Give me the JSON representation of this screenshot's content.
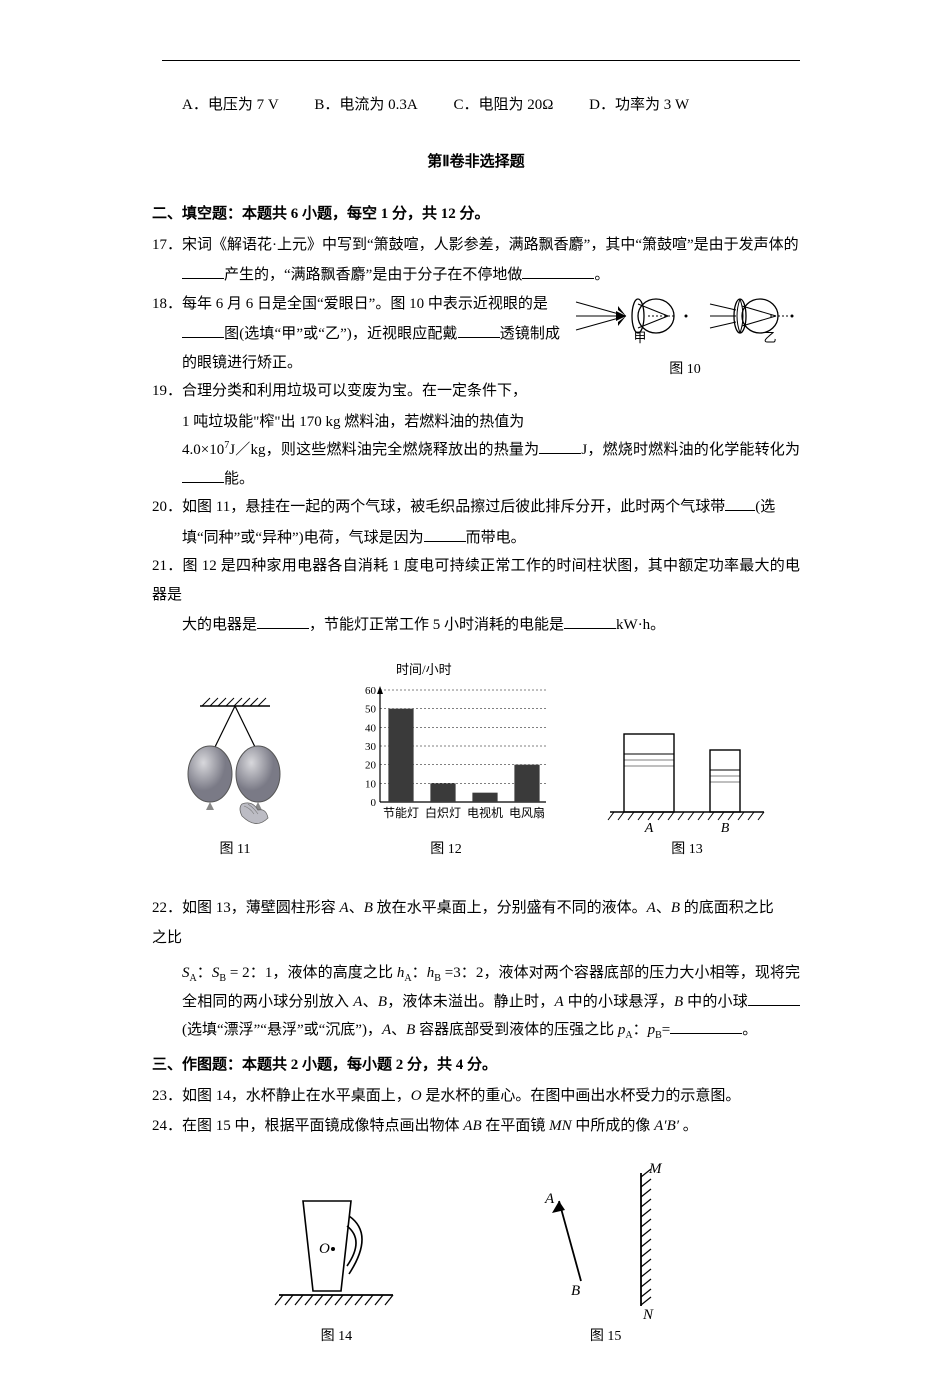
{
  "options_row": {
    "A": "A．电压为 7 V",
    "B": "B．电流为 0.3A",
    "C": "C．电阻为 20Ω",
    "D": "D．功率为 3 W"
  },
  "section2_title": "第Ⅱ卷非选择题",
  "fill_header": "二、填空题：本题共 6 小题，每空 1 分，共 12 分。",
  "q17": {
    "num": "17．",
    "text_a": "宋词《解语花·上元》中写到“箫鼓喧，人影参差，满路飘香麝”，其中“箫鼓喧”是由于发声体的",
    "text_b": "产生的，“满路飘香麝”是由于分子在不停地做",
    "text_c": "。"
  },
  "q18": {
    "num": "18．",
    "text_a": "每年 6 月 6 日是全国“爱眼日”。图 10 中表示近视眼的是",
    "text_b": "图(选填“甲”或“乙”)，近视眼应配戴",
    "text_c": "透镜制成的眼镜进行矫正。"
  },
  "fig10": {
    "label": "图 10",
    "left_label": "甲",
    "right_label": "乙"
  },
  "q19": {
    "num": "19．",
    "text_a": "合理分类和利用垃圾可以变废为宝。在一定条件下，1 吨垃圾能“榨”出 170 kg 燃料油，若燃料油的热值为 4.0×10",
    "exp": "7",
    "text_b": "J／kg，则这些燃料油完全燃烧释放出的热量为",
    "text_c": "J，燃烧时燃料油的化学能转化为",
    "text_d": "能。"
  },
  "q20": {
    "num": "20．",
    "text_a": "如图 11，悬挂在一起的两个气球，被毛织品擦过后彼此排斥分开，此时两个气球带",
    "text_b": "(选",
    "text_c": "填“同种”或“异种”)电荷，气球是因为",
    "text_d": "而带电。"
  },
  "q21": {
    "num": "21．",
    "text_a": "图 12 是四种家用电器各自消耗 1 度电可持续正常工作的时间柱状图，其中额定功率最大的电器是",
    "text_b": "，节能灯正常工作 5 小时消耗的电能是",
    "text_c": "kW·h。"
  },
  "fig11_label": "图 11",
  "fig12_label": "图 12",
  "fig13_label": "图 13",
  "chart": {
    "y_axis_label": "时间/小时",
    "ylim": [
      0,
      60
    ],
    "yticks": [
      0,
      10,
      20,
      30,
      40,
      50,
      60
    ],
    "categories": [
      "节能灯",
      "白炽灯",
      "电视机",
      "电风扇"
    ],
    "values": [
      50,
      10,
      5,
      20
    ],
    "bar_color": "#3a3a3a",
    "grid_color": "#000000",
    "bg": "#ffffff",
    "bar_width_ratio": 0.6
  },
  "fig13": {
    "A": "A",
    "B": "B"
  },
  "q22": {
    "num": "22．",
    "text_a": "如图 13，薄壁圆柱形容 ",
    "A": "A",
    "text_b": "、",
    "B": "B",
    "text_c": " 放在水平桌面上，分别盛有不同的液体。",
    "text_d": " 的底面积之比",
    "line2_a": "S",
    "line2_b": "：",
    "line2_c": " = 2：1，液体的高度之比 ",
    "hA": "h",
    "line2_d": "：",
    "hB": "h",
    "line2_e": " =3：2，液体对两个容器底部的压力大小相等，现将完全相同的两小球分别放入 ",
    "line2_f": "，液体未溢出。静止时，",
    "line2_g": " 中的小球悬浮，",
    "line2_h": " 中的小球",
    "line2_i": " (选填“漂浮”“悬浮”或“沉底”)，",
    "line2_j": " 容器底部受到液体的压强之比 ",
    "pA": "p",
    "pB": "p",
    "line2_k": "=",
    "line2_l": "。"
  },
  "draw_header": "三、作图题：本题共 2 小题，每小题 2 分，共 4 分。",
  "q23": {
    "num": "23．",
    "text": "如图 14，水杯静止在水平桌面上，",
    "O": "O",
    "text_b": " 是水杯的重心。在图中画出水杯受力的示意图。"
  },
  "q24": {
    "num": "24．",
    "text_a": "在图 15 中，根据平面镜成像特点画出物体 ",
    "AB": "AB",
    "text_b": " 在平面镜 ",
    "MN": "MN",
    "text_c": " 中所成的像 ",
    "ApBp": "A′B′",
    "text_d": " 。"
  },
  "fig14_label": "图 14",
  "fig15_label": "图 15",
  "fig14": {
    "O": "O"
  },
  "fig15": {
    "A": "A",
    "B": "B",
    "M": "M",
    "N": "N"
  }
}
